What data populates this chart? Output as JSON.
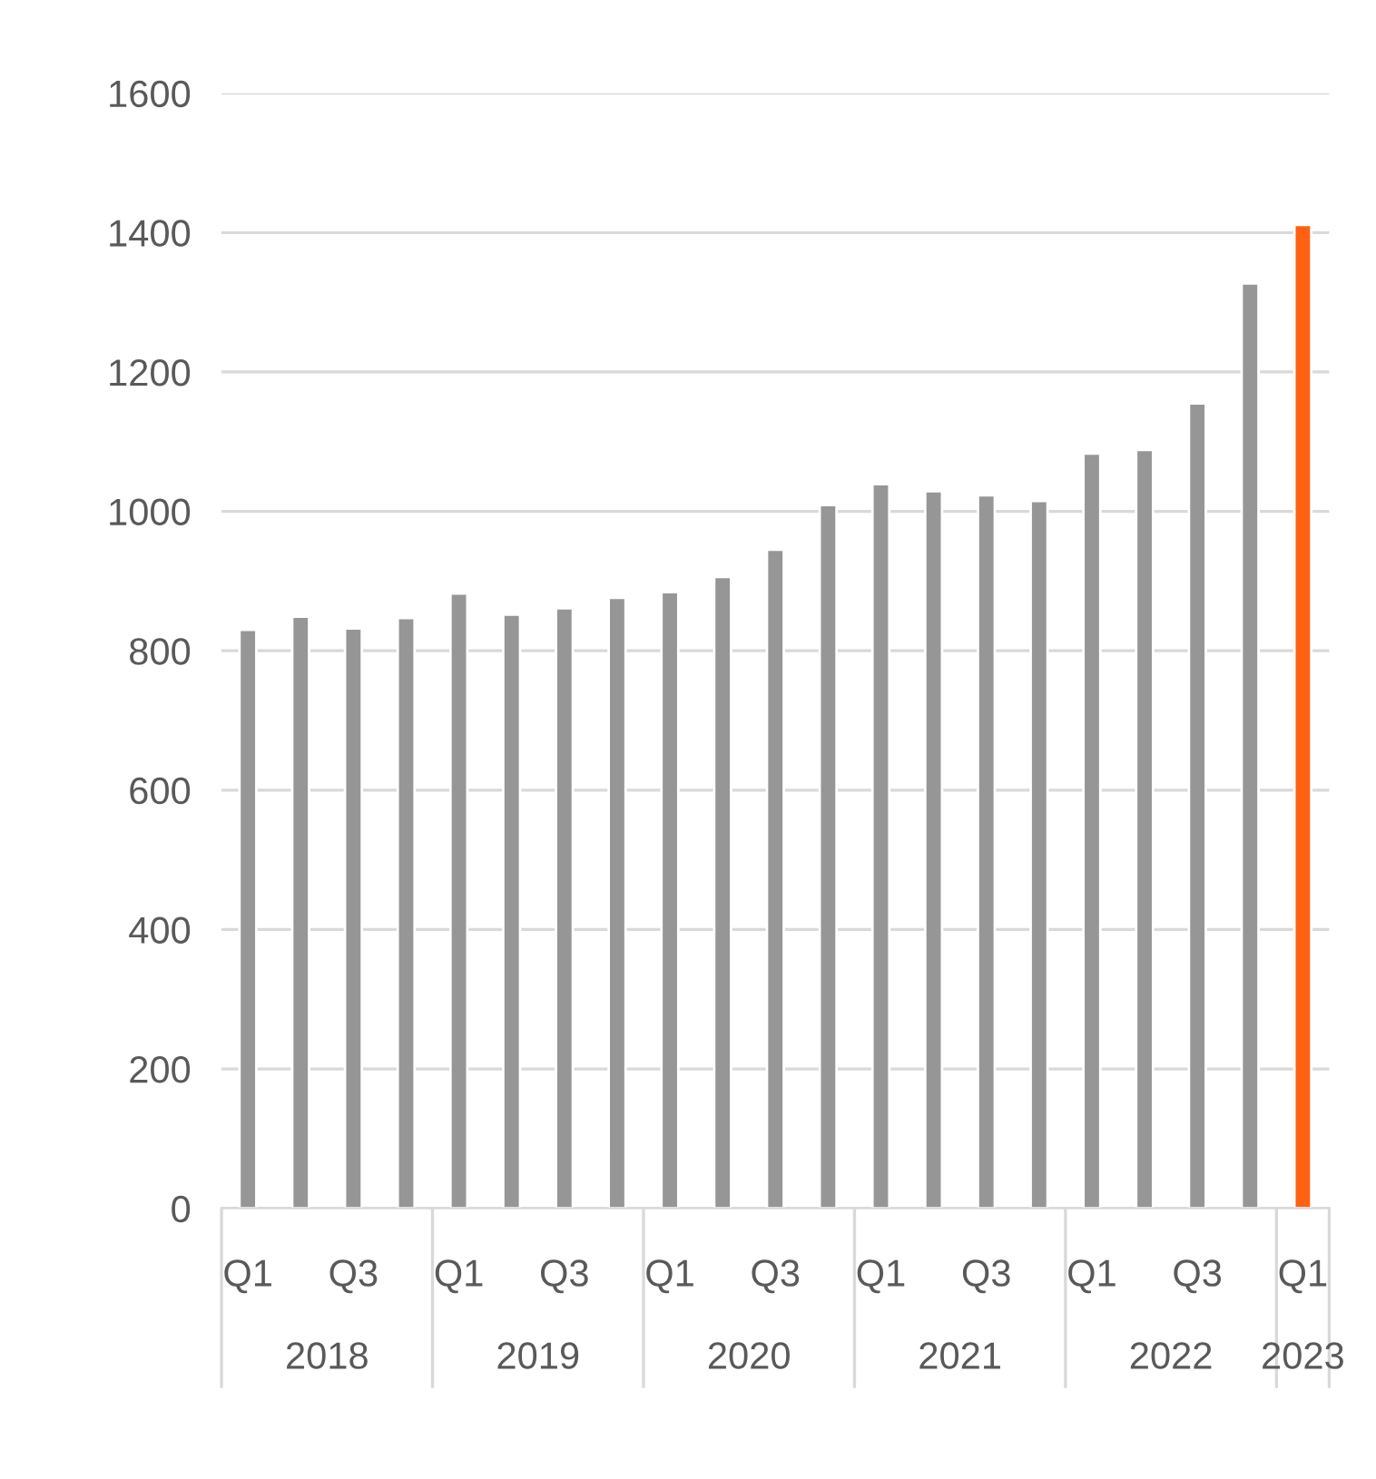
{
  "chart_data": {
    "type": "bar",
    "categories": [
      "Q1",
      null,
      "Q3",
      null,
      "Q1",
      null,
      "Q3",
      null,
      "Q1",
      null,
      "Q3",
      null,
      "Q1",
      null,
      "Q3",
      null,
      "Q1",
      null,
      "Q3",
      null,
      "Q1"
    ],
    "values": [
      830,
      849,
      832,
      847,
      882,
      852,
      861,
      876,
      884,
      906,
      945,
      1009,
      1039,
      1029,
      1023,
      1015,
      1083,
      1088,
      1155,
      1327,
      1411
    ],
    "colors": [
      "#969696",
      "#969696",
      "#969696",
      "#969696",
      "#969696",
      "#969696",
      "#969696",
      "#969696",
      "#969696",
      "#969696",
      "#969696",
      "#969696",
      "#969696",
      "#969696",
      "#969696",
      "#969696",
      "#969696",
      "#969696",
      "#969696",
      "#969696",
      "#ff6112"
    ],
    "annotations": [
      "2018",
      "2019",
      "2020",
      "2021",
      "2022",
      "2023"
    ],
    "ylim": [
      0,
      1600
    ],
    "yticks": [
      0,
      200,
      400,
      600,
      800,
      1000,
      1200,
      1400,
      1600
    ],
    "grid": "y",
    "legend": false
  }
}
